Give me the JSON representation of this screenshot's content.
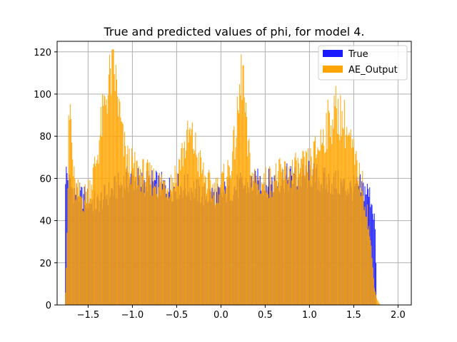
{
  "chart_data": {
    "type": "bar",
    "title": "True and predicted values of phi, for model 4.",
    "xlabel": "",
    "ylabel": "",
    "xlim": [
      -1.85,
      2.15
    ],
    "ylim": [
      0,
      125
    ],
    "xticks": [
      -1.5,
      -1.0,
      -0.5,
      0.0,
      0.5,
      1.0,
      1.5,
      2.0
    ],
    "xtick_labels": [
      "−1.5",
      "−1.0",
      "−0.5",
      "0.0",
      "0.5",
      "1.0",
      "1.5",
      "2.0"
    ],
    "yticks": [
      0,
      20,
      40,
      60,
      80,
      100,
      120
    ],
    "ytick_labels": [
      "0",
      "20",
      "40",
      "60",
      "80",
      "100",
      "120"
    ],
    "grid": true,
    "legend_position": "top-right",
    "bin_range": [
      -1.76,
      1.8
    ],
    "bin_count": 400,
    "series": [
      {
        "name": "True",
        "color": "#1a1aff",
        "x": [
          -1.74,
          -1.72,
          -1.68,
          -1.6,
          -1.5,
          -1.4,
          -1.3,
          -1.2,
          -1.1,
          -1.0,
          -0.9,
          -0.8,
          -0.7,
          -0.6,
          -0.5,
          -0.4,
          -0.3,
          -0.2,
          -0.1,
          0.0,
          0.1,
          0.2,
          0.3,
          0.4,
          0.5,
          0.6,
          0.7,
          0.8,
          0.9,
          1.0,
          1.1,
          1.2,
          1.3,
          1.4,
          1.5,
          1.56,
          1.6,
          1.65,
          1.7,
          1.74,
          1.76
        ],
        "y": [
          62,
          58,
          55,
          52,
          50,
          48,
          52,
          55,
          58,
          60,
          58,
          58,
          57,
          55,
          56,
          56,
          55,
          52,
          52,
          52,
          55,
          56,
          57,
          58,
          58,
          58,
          60,
          60,
          60,
          62,
          60,
          58,
          58,
          56,
          55,
          56,
          55,
          54,
          50,
          40,
          0
        ]
      },
      {
        "name": "AE_Output",
        "color": "#ffa500",
        "x": [
          -1.76,
          -1.74,
          -1.72,
          -1.7,
          -1.68,
          -1.65,
          -1.6,
          -1.55,
          -1.5,
          -1.45,
          -1.4,
          -1.35,
          -1.3,
          -1.25,
          -1.2,
          -1.15,
          -1.1,
          -1.05,
          -1.0,
          -0.9,
          -0.8,
          -0.7,
          -0.6,
          -0.5,
          -0.45,
          -0.4,
          -0.35,
          -0.3,
          -0.25,
          -0.2,
          -0.15,
          -0.1,
          -0.05,
          0.0,
          0.05,
          0.1,
          0.15,
          0.2,
          0.23,
          0.25,
          0.27,
          0.3,
          0.35,
          0.4,
          0.5,
          0.6,
          0.7,
          0.8,
          0.9,
          1.0,
          1.05,
          1.1,
          1.15,
          1.2,
          1.25,
          1.3,
          1.35,
          1.4,
          1.45,
          1.5,
          1.55,
          1.6,
          1.65,
          1.7,
          1.73,
          1.76,
          1.8
        ],
        "y": [
          0,
          30,
          80,
          95,
          70,
          55,
          52,
          50,
          55,
          60,
          70,
          85,
          98,
          108,
          110,
          92,
          75,
          68,
          65,
          62,
          60,
          58,
          57,
          62,
          70,
          76,
          80,
          76,
          68,
          62,
          57,
          55,
          55,
          57,
          60,
          65,
          75,
          92,
          108,
          112,
          92,
          75,
          62,
          58,
          58,
          60,
          62,
          63,
          64,
          66,
          70,
          75,
          80,
          85,
          88,
          92,
          90,
          86,
          78,
          70,
          62,
          56,
          45,
          25,
          10,
          3,
          0
        ]
      }
    ]
  }
}
